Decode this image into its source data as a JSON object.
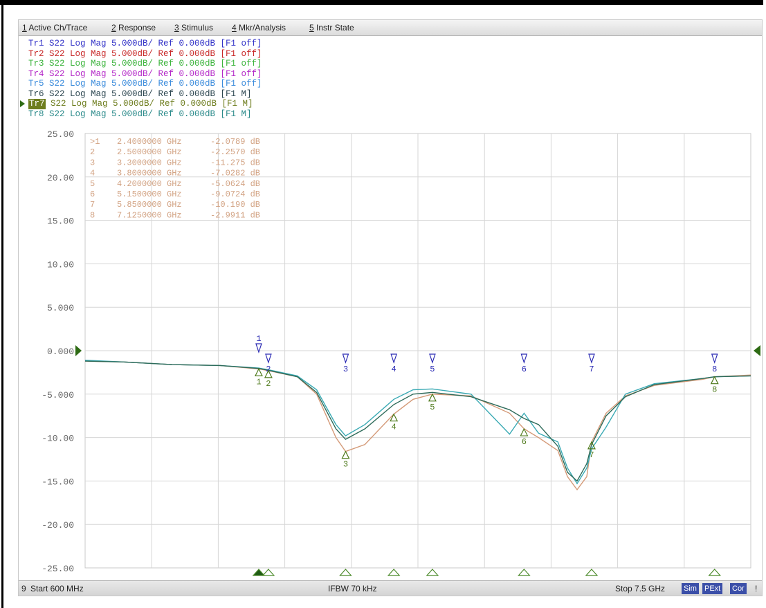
{
  "menu": {
    "items": [
      {
        "num": "1",
        "label": "Active Ch/Trace"
      },
      {
        "num": "2",
        "label": "Response"
      },
      {
        "num": "3",
        "label": "Stimulus"
      },
      {
        "num": "4",
        "label": "Mkr/Analysis"
      },
      {
        "num": "5",
        "label": "Instr State"
      }
    ]
  },
  "traces": [
    {
      "id": "Tr1",
      "text": "Tr1 S22 Log Mag 5.000dB/ Ref 0.000dB [F1 off]",
      "color": "#3434c8",
      "active": false
    },
    {
      "id": "Tr2",
      "text": "Tr2 S22 Log Mag 5.000dB/ Ref 0.000dB [F1 off]",
      "color": "#c82828",
      "active": false
    },
    {
      "id": "Tr3",
      "text": "Tr3 S22 Log Mag 5.000dB/ Ref 0.000dB [F1 off]",
      "color": "#3cb43c",
      "active": false
    },
    {
      "id": "Tr4",
      "text": "Tr4 S22 Log Mag 5.000dB/ Ref 0.000dB [F1 off]",
      "color": "#b428c8",
      "active": false
    },
    {
      "id": "Tr5",
      "text": "Tr5 S22 Log Mag 5.000dB/ Ref 0.000dB [F1 off]",
      "color": "#3c8cdc",
      "active": false
    },
    {
      "id": "Tr6",
      "text": "Tr6 S22 Log Mag 5.000dB/ Ref 0.000dB [F1 M]",
      "color": "#2c4650",
      "active": false
    },
    {
      "id": "Tr7",
      "text": " S22 Log Mag 5.000dB/ Ref 0.000dB [F1 M]",
      "label": "Tr7",
      "color": "#6e7d1e",
      "active": true
    },
    {
      "id": "Tr8",
      "text": "Tr8 S22 Log Mag 5.000dB/ Ref 0.000dB [F1 M]",
      "color": "#2a8a8a",
      "active": false
    }
  ],
  "chart_data": {
    "type": "line",
    "ylim": [
      -25,
      25
    ],
    "y_ticks": [
      "25.00",
      "20.00",
      "15.00",
      "10.00",
      "5.000",
      "0.000",
      "-5.000",
      "-10.00",
      "-15.00",
      "-20.00",
      "-25.00"
    ],
    "x_start_ghz": 0.6,
    "x_stop_ghz": 7.5,
    "grid": true,
    "marker_table": [
      {
        "n": ">1",
        "freq": "2.4000000 GHz",
        "val": "-2.0789 dB"
      },
      {
        "n": "2",
        "freq": "2.5000000 GHz",
        "val": "-2.2570 dB"
      },
      {
        "n": "3",
        "freq": "3.3000000 GHz",
        "val": "-11.275 dB"
      },
      {
        "n": "4",
        "freq": "3.8000000 GHz",
        "val": "-7.0282 dB"
      },
      {
        "n": "5",
        "freq": "4.2000000 GHz",
        "val": "-5.0624 dB"
      },
      {
        "n": "6",
        "freq": "5.1500000 GHz",
        "val": "-9.0724 dB"
      },
      {
        "n": "7",
        "freq": "5.8500000 GHz",
        "val": "-10.190 dB"
      },
      {
        "n": "8",
        "freq": "7.1250000 GHz",
        "val": "-2.9911 dB"
      }
    ],
    "markers": [
      {
        "label": "1",
        "freq_ghz": 2.4
      },
      {
        "label": "2",
        "freq_ghz": 2.5
      },
      {
        "label": "3",
        "freq_ghz": 3.3
      },
      {
        "label": "4",
        "freq_ghz": 3.8
      },
      {
        "label": "5",
        "freq_ghz": 4.2
      },
      {
        "label": "6",
        "freq_ghz": 5.15
      },
      {
        "label": "7",
        "freq_ghz": 5.85
      },
      {
        "label": "8",
        "freq_ghz": 7.125
      }
    ],
    "series": [
      {
        "color": "#d49a78",
        "x": [
          0.6,
          1.0,
          1.5,
          2.0,
          2.4,
          2.5,
          2.8,
          3.0,
          3.2,
          3.3,
          3.5,
          3.8,
          4.0,
          4.2,
          4.6,
          5.0,
          5.15,
          5.3,
          5.5,
          5.6,
          5.7,
          5.8,
          5.85,
          6.0,
          6.2,
          6.5,
          7.0,
          7.125,
          7.5
        ],
        "y": [
          -1.2,
          -1.3,
          -1.6,
          -1.7,
          -2.1,
          -2.3,
          -3.0,
          -5.0,
          -10.0,
          -11.6,
          -10.8,
          -7.3,
          -5.6,
          -5.0,
          -5.2,
          -7.2,
          -9.0,
          -10.0,
          -11.5,
          -14.5,
          -16.0,
          -14.5,
          -10.5,
          -7.2,
          -5.2,
          -4.0,
          -3.3,
          -3.0,
          -2.8
        ]
      },
      {
        "color": "#3aaab4",
        "x": [
          0.6,
          1.0,
          1.5,
          2.0,
          2.4,
          2.5,
          2.8,
          3.0,
          3.2,
          3.3,
          3.5,
          3.8,
          4.0,
          4.2,
          4.6,
          5.0,
          5.15,
          5.3,
          5.5,
          5.6,
          5.7,
          5.8,
          5.85,
          6.0,
          6.2,
          6.5,
          7.0,
          7.125,
          7.5
        ],
        "y": [
          -1.1,
          -1.3,
          -1.6,
          -1.7,
          -2.0,
          -2.2,
          -2.9,
          -4.5,
          -8.5,
          -9.8,
          -8.5,
          -5.6,
          -4.5,
          -4.4,
          -5.0,
          -9.6,
          -7.2,
          -9.5,
          -10.5,
          -13.5,
          -15.3,
          -13.5,
          -11.3,
          -8.8,
          -5.0,
          -3.8,
          -3.2,
          -3.0,
          -2.9
        ]
      },
      {
        "color": "#2e6b5a",
        "x": [
          0.6,
          1.0,
          1.5,
          2.0,
          2.4,
          2.5,
          2.8,
          3.0,
          3.2,
          3.3,
          3.5,
          3.8,
          4.0,
          4.2,
          4.6,
          5.0,
          5.15,
          5.3,
          5.5,
          5.6,
          5.7,
          5.8,
          5.85,
          6.0,
          6.2,
          6.5,
          7.0,
          7.125,
          7.5
        ],
        "y": [
          -1.2,
          -1.3,
          -1.6,
          -1.7,
          -2.05,
          -2.25,
          -3.0,
          -4.8,
          -9.0,
          -10.2,
          -9.0,
          -6.2,
          -5.0,
          -4.8,
          -5.3,
          -6.8,
          -7.8,
          -8.5,
          -11.0,
          -14.0,
          -15.0,
          -13.0,
          -10.8,
          -7.5,
          -5.3,
          -3.9,
          -3.2,
          -3.0,
          -2.9
        ]
      }
    ]
  },
  "status": {
    "channel": "9",
    "start": "Start 600 MHz",
    "ifbw": "IFBW 70 kHz",
    "stop": "Stop 7.5 GHz",
    "badges": [
      "Sim",
      "PExt",
      "Cor"
    ],
    "end": "!"
  },
  "colors": {
    "grid": "#d6d6d6",
    "marker_blue": "#2b2bb4",
    "marker_green": "#4f7a1c",
    "ref_arrow": "#2e6b14"
  }
}
